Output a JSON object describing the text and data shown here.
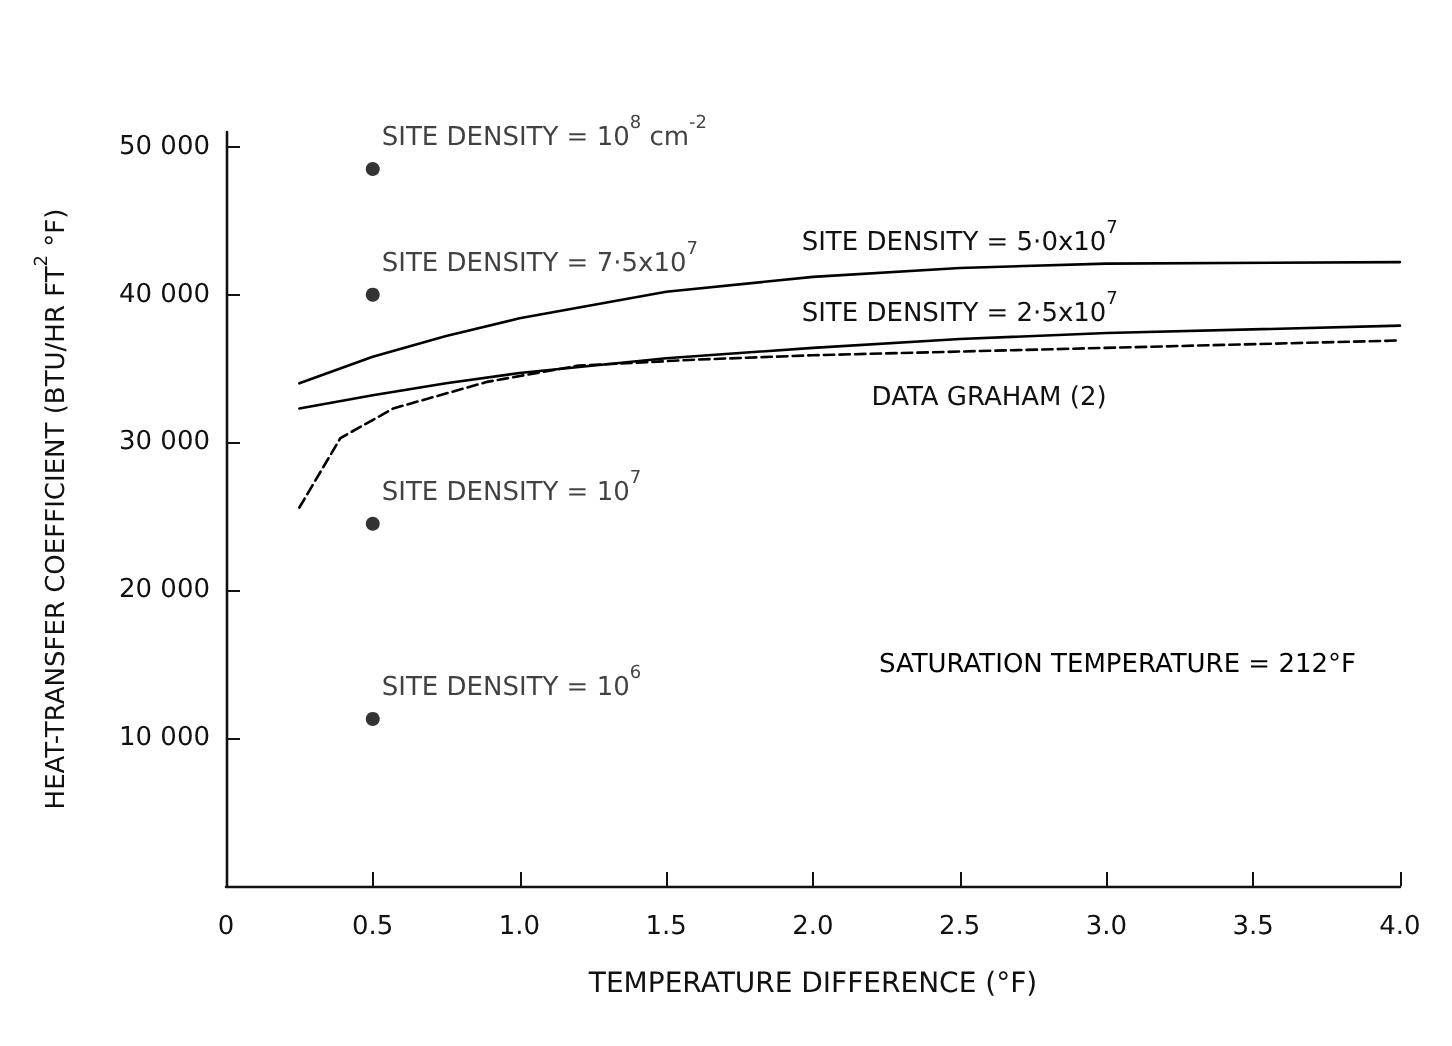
{
  "chart_data": {
    "type": "line",
    "xlabel": "TEMPERATURE DIFFERENCE (°F)",
    "ylabel": "HEAT-TRANSFER COEFFICIENT (BTU/HR FT$^{2}$ °F)",
    "xlim": [
      0,
      4.0
    ],
    "xticks": [
      0,
      0.5,
      {
        "value": 1,
        "label": "1.0"
      },
      1.5,
      {
        "value": 2,
        "label": "2.0"
      },
      2.5,
      {
        "value": 3,
        "label": "3.0"
      },
      3.5,
      {
        "value": 4,
        "label": "4.0"
      }
    ],
    "ylim": [
      0,
      51000
    ],
    "yticks": [
      {
        "value": 0,
        "label": null
      },
      {
        "value": 10000,
        "label": "10 000"
      },
      {
        "value": 20000,
        "label": "20 000"
      },
      {
        "value": 30000,
        "label": "30 000"
      },
      {
        "value": 40000,
        "label": "40 000"
      },
      {
        "value": 50000,
        "label": "50 000"
      }
    ],
    "grid": false,
    "legend": false,
    "series": [
      {
        "name": "SITE DENSITY = 5·0x10$^{7}$",
        "color": "#000000",
        "line_style": "solid",
        "marker": "none",
        "x": [
          0.25,
          0.5,
          0.75,
          1.0,
          1.5,
          2.0,
          2.5,
          3.0,
          4.0
        ],
        "values": [
          34000,
          35800,
          37200,
          38400,
          40200,
          41200,
          41800,
          42100,
          42200
        ]
      },
      {
        "name": "SITE DENSITY = 2·5x10$^{7}$",
        "color": "#000000",
        "line_style": "solid",
        "marker": "none",
        "x": [
          0.25,
          0.5,
          0.75,
          1.0,
          1.5,
          2.0,
          2.5,
          3.0,
          4.0
        ],
        "values": [
          32300,
          33200,
          34000,
          34700,
          35700,
          36400,
          37000,
          37400,
          37900
        ]
      },
      {
        "name": "DATA GRAHAM (2)",
        "color": "#000000",
        "line_style": "dashed",
        "marker": "none",
        "x": [
          0.25,
          0.39,
          0.57,
          0.89,
          1.2,
          1.6,
          2.0,
          2.6,
          3.2,
          4.0
        ],
        "values": [
          25600,
          30300,
          32300,
          34100,
          35200,
          35600,
          35900,
          36200,
          36500,
          36900
        ]
      },
      {
        "type": "scatter",
        "color": "#000000",
        "marker": "circle",
        "x": [
          0.5,
          0.5,
          0.5,
          0.5
        ],
        "values": [
          48500,
          40000,
          24500,
          11300
        ],
        "value_labels": [
          "SITE DENSITY = 10$^{8}$ cm$^{-2}$",
          "SITE DENSITY = 7·5x10$^{7}$",
          "SITE DENSITY = 10$^{7}$",
          "SITE DENSITY = 10$^{6}$"
        ]
      }
    ],
    "annotations": [
      "SATURATION TEMPERATURE = 212°F"
    ]
  }
}
